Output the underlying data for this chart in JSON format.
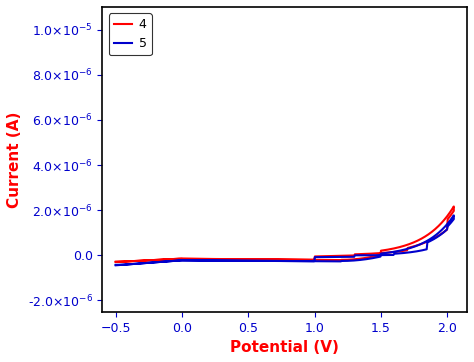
{
  "title": "",
  "xlabel": "Potential (V)",
  "ylabel": "Current (A)",
  "xlim": [
    -0.6,
    2.15
  ],
  "ylim": [
    -2.5e-06,
    1.1e-05
  ],
  "xticks": [
    -0.5,
    0.0,
    0.5,
    1.0,
    1.5,
    2.0
  ],
  "yticks": [
    -2e-06,
    0.0,
    2e-06,
    4e-06,
    6e-06,
    8e-06,
    1e-05
  ],
  "line4_color": "#ff0000",
  "line5_color": "#0000cc",
  "label4": "4",
  "label5": "5",
  "bg_color": "#ffffff",
  "xlabel_color": "#ff0000",
  "ylabel_color": "#ff0000",
  "tick_color": "#0000cc",
  "spine_color": "#000000"
}
